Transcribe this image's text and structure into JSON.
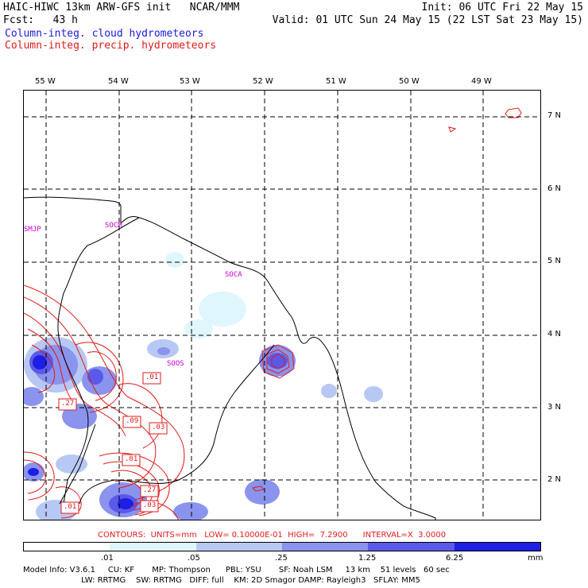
{
  "header": {
    "model_title": "HAIC-HIWC 13km ARW-GFS init   NCAR/MMM",
    "fcst": "Fcst:   43 h",
    "init": "Init: 06 UTC Fri 22 May 15",
    "valid": "Valid: 01 UTC Sun 24 May 15 (22 LST Sat 23 May 15)",
    "field_cloud": "Column-integ. cloud hydrometeors",
    "field_precip": "Column-integ. precip. hydrometeors"
  },
  "map": {
    "lon_labels": [
      "55 W",
      "54 W",
      "53 W",
      "52 W",
      "51 W",
      "50 W",
      "49 W"
    ],
    "lat_labels": [
      "7 N",
      "6 N",
      "5 N",
      "4 N",
      "3 N",
      "2 N"
    ],
    "stations": [
      "SMJP",
      "SOCM",
      "SOCA",
      "SOOS"
    ],
    "contour_labels": [
      ".01",
      ".27",
      ".09",
      ".03",
      ".01",
      ".27",
      ".03",
      ".01"
    ]
  },
  "contour_info": "CONTOURS:  UNITS=mm   LOW= 0.10000E-01  HIGH=  7.2900      INTERVAL=X  3.0000",
  "colorbar": {
    "colors": [
      "#ffffff",
      "#dff6fd",
      "#b8c8f4",
      "#8a93ee",
      "#5a5aea",
      "#1e1ee4"
    ],
    "labels": [
      ".01",
      ".05",
      ".25",
      "1.25",
      "6.25",
      "mm"
    ]
  },
  "footer": {
    "line1": "Model Info: V3.6.1     CU: KF       MP: Thompson      PBL: YSU       SF: Noah LSM     13 km    51 levels   60 sec",
    "line2": "                       LW: RRTMG    SW: RRTMG   DIFF: full    KM: 2D Smagor DAMP: Rayleigh3   SFLAY: MM5"
  },
  "colors": {
    "cloud_label": "#1a1adf",
    "precip_contour": "#e11a1a",
    "station": "#cc00cc"
  }
}
